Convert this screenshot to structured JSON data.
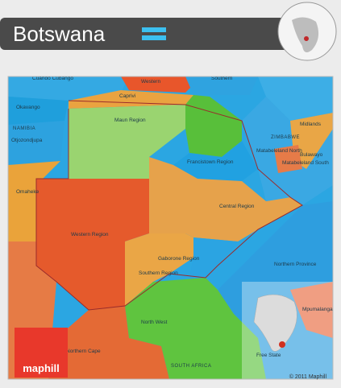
{
  "header": {
    "title": "Botswana"
  },
  "regions": [
    "Cuando Cubango",
    "Western",
    "Southern",
    "Caprivi",
    "Okavango",
    "NAMIBIA",
    "Otjozondjupa",
    "Maun Region",
    "Midlands",
    "ZIMBABWE",
    "Matabeleland North",
    "Bulawayo",
    "Matabeleland South",
    "Francistown Region",
    "Omaheke",
    "Central Region",
    "Western Region",
    "Gaborone Region",
    "Southern Region",
    "Northern Province",
    "North West",
    "Mpumalanga",
    "Free State",
    "Northern Cape",
    "SOUTH AFRICA"
  ],
  "footer": {
    "logo": "maphill",
    "copyright": "© 2011 Maphill"
  }
}
